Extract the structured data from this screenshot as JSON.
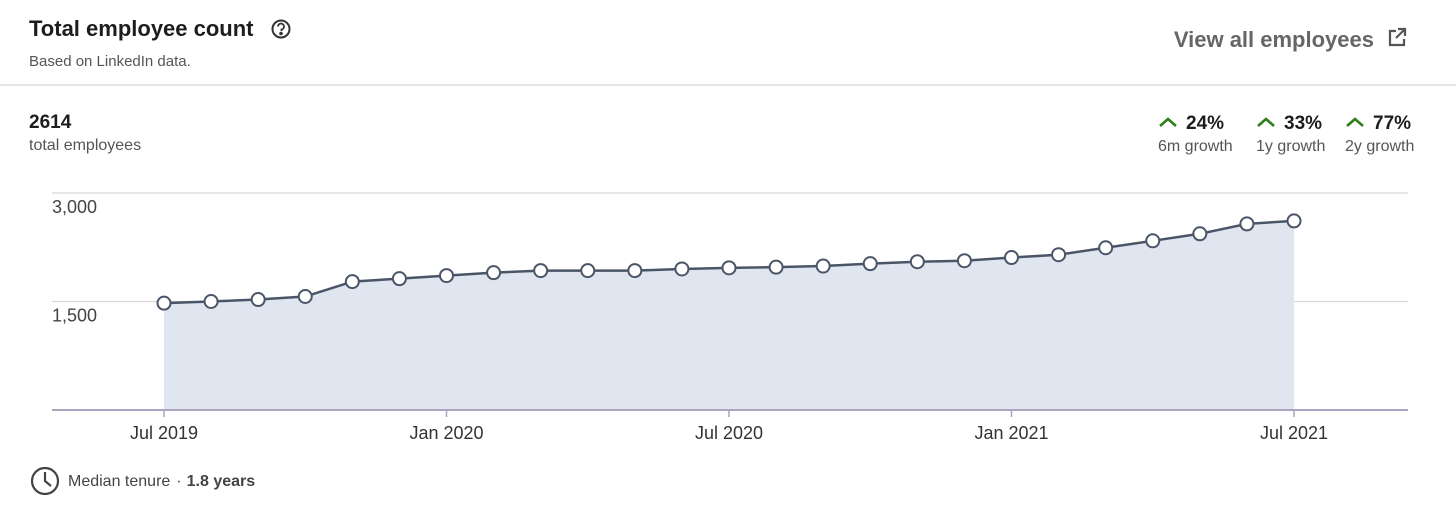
{
  "header": {
    "title": "Total employee count",
    "subtitle": "Based on LinkedIn data.",
    "link": "View all employees"
  },
  "summary": {
    "total": "2614",
    "total_label": "total employees",
    "growth": [
      {
        "value": "24%",
        "label": "6m growth"
      },
      {
        "value": "33%",
        "label": "1y growth"
      },
      {
        "value": "77%",
        "label": "2y growth"
      }
    ]
  },
  "chart_data": {
    "type": "area",
    "categories": [
      "Jul 2019",
      null,
      null,
      null,
      null,
      null,
      "Jan 2020",
      null,
      null,
      null,
      null,
      null,
      "Jul 2020",
      null,
      null,
      null,
      null,
      null,
      "Jan 2021",
      null,
      null,
      null,
      null,
      null,
      "Jul 2021"
    ],
    "values": [
      1477,
      1500,
      1527,
      1569,
      1775,
      1816,
      1858,
      1899,
      1927,
      1927,
      1927,
      1950,
      1965,
      1975,
      1990,
      2023,
      2050,
      2064,
      2108,
      2147,
      2243,
      2339,
      2436,
      2573,
      2614
    ],
    "color": "#4a5568",
    "fill": "#dfe6f0",
    "ylim": [
      0,
      3000
    ],
    "yticks": [
      {
        "value": 1500,
        "label": "1,500"
      },
      {
        "value": 3000,
        "label": "3,000"
      }
    ],
    "grid": true
  },
  "footer": {
    "label": "Median tenure",
    "separator": "·",
    "value": "1.8 years"
  }
}
